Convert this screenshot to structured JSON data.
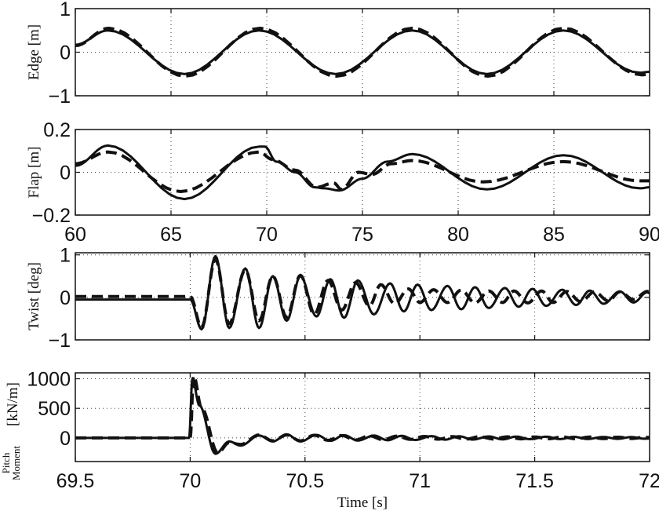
{
  "chart_data": [
    {
      "type": "line",
      "ylabel": "Edge [m]",
      "xlim": [
        60,
        90
      ],
      "ylim": [
        -1,
        1
      ],
      "xticks": [
        60,
        65,
        70,
        75,
        80,
        85,
        90
      ],
      "xticklabels_shown": false,
      "yticks": [
        -1,
        0,
        1
      ],
      "yticklabels": [
        "−1",
        "0",
        "1"
      ],
      "grid": true,
      "series": [
        {
          "style": "solid",
          "points": [
            [
              60,
              0.17
            ],
            [
              61.7,
              0.5
            ],
            [
              65.7,
              -0.5
            ],
            [
              69.6,
              0.5
            ],
            [
              73.6,
              -0.5
            ],
            [
              77.6,
              0.5
            ],
            [
              81.5,
              -0.5
            ],
            [
              85.5,
              0.5
            ],
            [
              89.5,
              -0.47
            ],
            [
              90,
              -0.45
            ]
          ]
        },
        {
          "style": "dashed",
          "points": [
            [
              60,
              0.15
            ],
            [
              61.75,
              0.55
            ],
            [
              65.75,
              -0.55
            ],
            [
              69.65,
              0.55
            ],
            [
              73.65,
              -0.55
            ],
            [
              77.6,
              0.55
            ],
            [
              81.55,
              -0.55
            ],
            [
              85.5,
              0.55
            ],
            [
              89.6,
              -0.52
            ],
            [
              90,
              -0.5
            ]
          ]
        }
      ]
    },
    {
      "type": "line",
      "ylabel": "Flap [m]",
      "xlim": [
        60,
        90
      ],
      "ylim": [
        -0.2,
        0.2
      ],
      "xticks": [
        60,
        65,
        70,
        75,
        80,
        85,
        90
      ],
      "xticklabels": [
        "60",
        "65",
        "70",
        "75",
        "80",
        "85",
        "90"
      ],
      "yticks": [
        -0.2,
        0,
        0.2
      ],
      "yticklabels": [
        "−0.2",
        "0",
        "0.2"
      ],
      "grid": true,
      "series": [
        {
          "style": "solid",
          "points": [
            [
              60,
              0.03
            ],
            [
              61.7,
              0.125
            ],
            [
              65.7,
              -0.125
            ],
            [
              69.6,
              0.12
            ],
            [
              69.9,
              0.12
            ],
            [
              70.5,
              0.05
            ],
            [
              71.5,
              0.0
            ],
            [
              72.5,
              -0.07
            ],
            [
              73,
              -0.075
            ],
            [
              73.8,
              -0.085
            ],
            [
              75,
              -0.03
            ],
            [
              76.3,
              0.05
            ],
            [
              77.6,
              0.085
            ],
            [
              81.5,
              -0.08
            ],
            [
              85.5,
              0.08
            ],
            [
              89.5,
              -0.075
            ],
            [
              90,
              -0.07
            ]
          ]
        },
        {
          "style": "dashed",
          "points": [
            [
              60,
              0.04
            ],
            [
              61.7,
              0.095
            ],
            [
              65.5,
              -0.09
            ],
            [
              69.6,
              0.095
            ],
            [
              70.3,
              0.06
            ],
            [
              71.5,
              0.01
            ],
            [
              72.6,
              -0.07
            ],
            [
              73.5,
              -0.05
            ],
            [
              73.9,
              -0.08
            ],
            [
              74.8,
              0.0
            ],
            [
              75.5,
              -0.01
            ],
            [
              76.5,
              0.04
            ],
            [
              77.6,
              0.055
            ],
            [
              81.3,
              -0.045
            ],
            [
              85.5,
              0.05
            ],
            [
              89.5,
              -0.04
            ],
            [
              90,
              -0.04
            ]
          ]
        }
      ]
    },
    {
      "type": "line",
      "ylabel": "Twist [deg]",
      "xlim": [
        69.5,
        72
      ],
      "ylim": [
        -1,
        1.05
      ],
      "xticks": [
        69.5,
        70,
        70.5,
        71,
        71.5,
        72
      ],
      "xticklabels_shown": false,
      "yticks": [
        -1,
        0,
        1
      ],
      "yticklabels": [
        "−1",
        "0",
        "1"
      ],
      "grid": true,
      "series": [
        {
          "style": "solid",
          "points": [
            [
              69.5,
              -0.05
            ],
            [
              70.0,
              -0.05
            ],
            [
              70.05,
              -0.75
            ],
            [
              70.11,
              0.97
            ],
            [
              70.17,
              -0.72
            ],
            [
              70.24,
              0.68
            ],
            [
              70.3,
              -0.72
            ],
            [
              70.36,
              0.5
            ],
            [
              70.42,
              -0.55
            ],
            [
              70.48,
              0.5
            ],
            [
              70.55,
              -0.45
            ],
            [
              70.61,
              0.43
            ],
            [
              70.67,
              -0.48
            ],
            [
              70.73,
              0.4
            ],
            [
              70.8,
              -0.4
            ],
            [
              70.87,
              0.33
            ],
            [
              70.93,
              -0.33
            ],
            [
              70.99,
              0.3
            ],
            [
              71.05,
              -0.3
            ],
            [
              71.12,
              0.27
            ],
            [
              71.18,
              -0.28
            ],
            [
              71.24,
              0.24
            ],
            [
              71.3,
              -0.25
            ],
            [
              71.37,
              0.22
            ],
            [
              71.43,
              -0.22
            ],
            [
              71.49,
              0.2
            ],
            [
              71.55,
              -0.2
            ],
            [
              71.62,
              0.18
            ],
            [
              71.68,
              -0.18
            ],
            [
              71.74,
              0.16
            ],
            [
              71.8,
              -0.15
            ],
            [
              71.87,
              0.14
            ],
            [
              71.93,
              -0.12
            ],
            [
              71.99,
              0.12
            ],
            [
              72,
              0.1
            ]
          ]
        },
        {
          "style": "dashed",
          "points": [
            [
              69.5,
              0.02
            ],
            [
              70.0,
              0.02
            ],
            [
              70.05,
              -0.7
            ],
            [
              70.11,
              0.9
            ],
            [
              70.17,
              -0.62
            ],
            [
              70.24,
              0.65
            ],
            [
              70.3,
              -0.55
            ],
            [
              70.36,
              0.5
            ],
            [
              70.42,
              -0.47
            ],
            [
              70.48,
              0.52
            ],
            [
              70.54,
              -0.4
            ],
            [
              70.6,
              0.4
            ],
            [
              70.66,
              -0.3
            ],
            [
              70.72,
              0.35
            ],
            [
              70.78,
              -0.2
            ],
            [
              70.83,
              0.3
            ],
            [
              70.89,
              -0.15
            ],
            [
              70.95,
              0.2
            ],
            [
              71.0,
              -0.12
            ],
            [
              71.06,
              0.18
            ],
            [
              71.12,
              -0.12
            ],
            [
              71.18,
              0.17
            ],
            [
              71.24,
              -0.13
            ],
            [
              71.3,
              0.15
            ],
            [
              71.36,
              -0.12
            ],
            [
              71.41,
              0.15
            ],
            [
              71.47,
              -0.13
            ],
            [
              71.53,
              0.15
            ],
            [
              71.58,
              -0.12
            ],
            [
              71.64,
              0.14
            ],
            [
              71.7,
              -0.1
            ],
            [
              71.76,
              0.13
            ],
            [
              71.82,
              -0.08
            ],
            [
              71.87,
              0.13
            ],
            [
              71.93,
              -0.05
            ],
            [
              71.99,
              0.14
            ],
            [
              72,
              0.14
            ]
          ]
        }
      ]
    },
    {
      "type": "line",
      "ylabel_line1": "Pitch",
      "ylabel_line2": "Moment",
      "ylabel_unit": "[kN/m]",
      "xlabel": "Time [s]",
      "xlim": [
        69.5,
        72
      ],
      "ylim": [
        -400,
        1100
      ],
      "xticks": [
        69.5,
        70,
        70.5,
        71,
        71.5,
        72
      ],
      "xticklabels": [
        "69.5",
        "70",
        "70.5",
        "71",
        "71.5",
        "72"
      ],
      "yticks": [
        0,
        500,
        1000
      ],
      "yticklabels": [
        "0",
        "500",
        "1000"
      ],
      "grid": true,
      "series": [
        {
          "style": "solid",
          "points": [
            [
              69.5,
              0
            ],
            [
              69.995,
              0
            ],
            [
              70.01,
              1000
            ],
            [
              70.04,
              550
            ],
            [
              70.11,
              -270
            ],
            [
              70.17,
              -60
            ],
            [
              70.22,
              -130
            ],
            [
              70.3,
              40
            ],
            [
              70.36,
              -60
            ],
            [
              70.42,
              60
            ],
            [
              70.48,
              -60
            ],
            [
              70.55,
              50
            ],
            [
              70.61,
              -50
            ],
            [
              70.67,
              45
            ],
            [
              70.73,
              -45
            ],
            [
              70.8,
              40
            ],
            [
              70.86,
              -40
            ],
            [
              70.92,
              35
            ],
            [
              70.98,
              -35
            ],
            [
              71.05,
              30
            ],
            [
              71.11,
              -30
            ],
            [
              71.17,
              28
            ],
            [
              71.23,
              -28
            ],
            [
              71.3,
              25
            ],
            [
              71.36,
              -25
            ],
            [
              71.42,
              22
            ],
            [
              71.48,
              -22
            ],
            [
              71.55,
              20
            ],
            [
              71.61,
              -20
            ],
            [
              71.67,
              18
            ],
            [
              71.73,
              -18
            ],
            [
              71.8,
              16
            ],
            [
              71.86,
              -16
            ],
            [
              71.92,
              14
            ],
            [
              71.98,
              -14
            ],
            [
              72,
              -10
            ]
          ]
        },
        {
          "style": "dashed",
          "points": [
            [
              69.5,
              0
            ],
            [
              70.0,
              0
            ],
            [
              70.015,
              1050
            ],
            [
              70.05,
              500
            ],
            [
              70.12,
              -250
            ],
            [
              70.17,
              -80
            ],
            [
              70.22,
              -110
            ],
            [
              70.3,
              50
            ],
            [
              70.36,
              -50
            ],
            [
              70.42,
              50
            ],
            [
              70.48,
              -50
            ],
            [
              70.54,
              45
            ],
            [
              70.6,
              -40
            ],
            [
              70.66,
              40
            ],
            [
              70.72,
              -35
            ],
            [
              70.78,
              35
            ],
            [
              70.84,
              -30
            ],
            [
              70.9,
              30
            ],
            [
              70.96,
              -25
            ],
            [
              71.02,
              25
            ],
            [
              71.08,
              -22
            ],
            [
              71.14,
              22
            ],
            [
              71.2,
              -20
            ],
            [
              71.26,
              20
            ],
            [
              71.32,
              -18
            ],
            [
              71.38,
              18
            ],
            [
              71.44,
              -16
            ],
            [
              71.5,
              16
            ],
            [
              71.56,
              -15
            ],
            [
              71.62,
              15
            ],
            [
              71.68,
              -14
            ],
            [
              71.74,
              14
            ],
            [
              71.8,
              -12
            ],
            [
              71.86,
              12
            ],
            [
              71.92,
              -10
            ],
            [
              71.98,
              10
            ],
            [
              72,
              8
            ]
          ]
        }
      ]
    }
  ]
}
